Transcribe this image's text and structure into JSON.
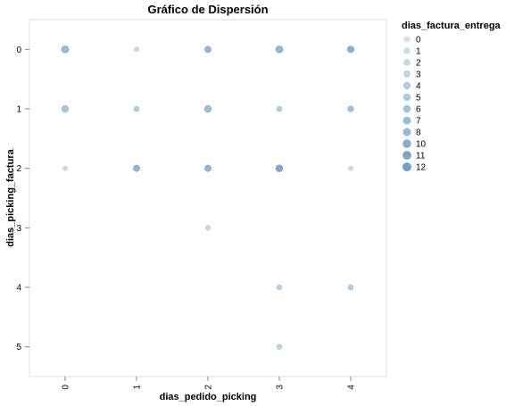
{
  "chart_data": {
    "type": "scatter",
    "title": "Gráfico de Dispersión",
    "xlabel": "dias_pedido_picking",
    "ylabel": "dias_picking_factura",
    "x_ticks": [
      "0",
      "1",
      "2",
      "3",
      "4"
    ],
    "y_ticks": [
      "0",
      "1",
      "2",
      "3",
      "4",
      "5"
    ],
    "xlim": [
      -0.5,
      4.5
    ],
    "ylim": [
      -0.5,
      5.5
    ],
    "y_reversed": true,
    "grid": false,
    "legend": {
      "title": "dias_factura_entrega",
      "position": "right",
      "entries": [
        "0",
        "1",
        "2",
        "3",
        "4",
        "5",
        "6",
        "7",
        "8",
        "10",
        "11",
        "12"
      ]
    },
    "color_range": [
      "#c9dfec",
      "#5b8fbd"
    ],
    "size_range": [
      0,
      12
    ],
    "points": [
      {
        "x": 0,
        "y": 0,
        "size": 12
      },
      {
        "x": 0,
        "y": 0,
        "size": 8
      },
      {
        "x": 0,
        "y": 0,
        "size": 4
      },
      {
        "x": 1,
        "y": 0,
        "size": 2
      },
      {
        "x": 1,
        "y": 0,
        "size": 1
      },
      {
        "x": 2,
        "y": 0,
        "size": 10
      },
      {
        "x": 2,
        "y": 0,
        "size": 6
      },
      {
        "x": 3,
        "y": 0,
        "size": 12
      },
      {
        "x": 3,
        "y": 0,
        "size": 8
      },
      {
        "x": 3,
        "y": 0,
        "size": 5
      },
      {
        "x": 4,
        "y": 0,
        "size": 11
      },
      {
        "x": 4,
        "y": 0,
        "size": 7
      },
      {
        "x": 0,
        "y": 1,
        "size": 10
      },
      {
        "x": 0,
        "y": 1,
        "size": 6
      },
      {
        "x": 0,
        "y": 1,
        "size": 3
      },
      {
        "x": 1,
        "y": 1,
        "size": 5
      },
      {
        "x": 1,
        "y": 1,
        "size": 3
      },
      {
        "x": 2,
        "y": 1,
        "size": 11
      },
      {
        "x": 2,
        "y": 1,
        "size": 7
      },
      {
        "x": 2,
        "y": 1,
        "size": 4
      },
      {
        "x": 3,
        "y": 1,
        "size": 5
      },
      {
        "x": 3,
        "y": 1,
        "size": 3
      },
      {
        "x": 4,
        "y": 1,
        "size": 8
      },
      {
        "x": 4,
        "y": 1,
        "size": 5
      },
      {
        "x": 0,
        "y": 2,
        "size": 2
      },
      {
        "x": 0,
        "y": 2,
        "size": 1
      },
      {
        "x": 1,
        "y": 2,
        "size": 10
      },
      {
        "x": 1,
        "y": 2,
        "size": 6
      },
      {
        "x": 2,
        "y": 2,
        "size": 10
      },
      {
        "x": 2,
        "y": 2,
        "size": 6
      },
      {
        "x": 3,
        "y": 2,
        "size": 12
      },
      {
        "x": 3,
        "y": 2,
        "size": 8
      },
      {
        "x": 4,
        "y": 2,
        "size": 2
      },
      {
        "x": 4,
        "y": 2,
        "size": 1
      },
      {
        "x": 2,
        "y": 3,
        "size": 3
      },
      {
        "x": 3,
        "y": 4,
        "size": 4
      },
      {
        "x": 4,
        "y": 4,
        "size": 5
      },
      {
        "x": 3,
        "y": 5,
        "size": 4
      }
    ]
  }
}
